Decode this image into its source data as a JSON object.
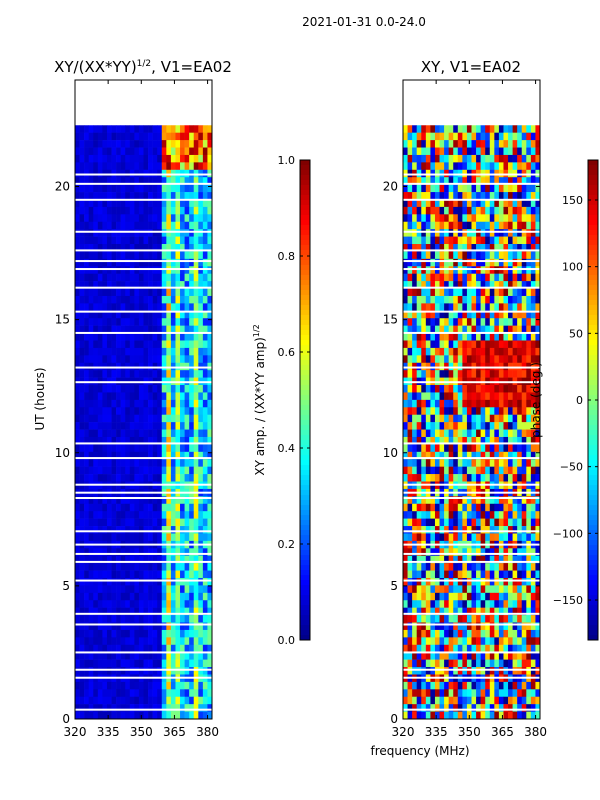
{
  "figure_title": "2021-01-31 0.0-24.0",
  "chart_data": [
    {
      "type": "heatmap",
      "title": "XY/(XX*YY)^{1/2}, V1=EA02",
      "title_main": "XY/(XX*YY)",
      "title_exp": "1/2",
      "title_tail": ", V1=EA02",
      "xlabel": "",
      "ylabel": "UT (hours)",
      "xlim": [
        320,
        382
      ],
      "ylim": [
        0,
        24
      ],
      "xticks": [
        320,
        335,
        350,
        365,
        380
      ],
      "yticks": [
        0,
        5,
        10,
        15,
        20
      ],
      "data_extent_hours": [
        0,
        22.3
      ],
      "quantity": "normalized XY amplitude",
      "colormap": "jet",
      "color_range": [
        0.0,
        1.0
      ],
      "colorbar": {
        "label": "XY amp. / (XX*YY amp)^{1/2}",
        "label_main": "XY amp. / (XX*YY amp)",
        "label_exp": "1/2",
        "ticks": [
          0.0,
          0.2,
          0.4,
          0.6,
          0.8,
          1.0
        ],
        "tick_labels": [
          "0.0",
          "0.2",
          "0.4",
          "0.6",
          "0.8",
          "1.0"
        ]
      }
    },
    {
      "type": "heatmap",
      "title": "XY, V1=EA02",
      "xlabel": "frequency (MHz)",
      "ylabel": "",
      "xlim": [
        320,
        382
      ],
      "ylim": [
        0,
        24
      ],
      "xticks": [
        320,
        335,
        350,
        365,
        380
      ],
      "yticks": [
        0,
        5,
        10,
        15,
        20
      ],
      "data_extent_hours": [
        0,
        22.3
      ],
      "quantity": "XY phase",
      "colormap": "jet",
      "color_range": [
        -180,
        180
      ],
      "colorbar": {
        "label": "phase (deg.)",
        "ticks": [
          -150,
          -100,
          -50,
          0,
          50,
          100,
          150
        ],
        "tick_labels": [
          "−150",
          "−100",
          "−50",
          "0",
          "50",
          "100",
          "150"
        ]
      }
    }
  ]
}
